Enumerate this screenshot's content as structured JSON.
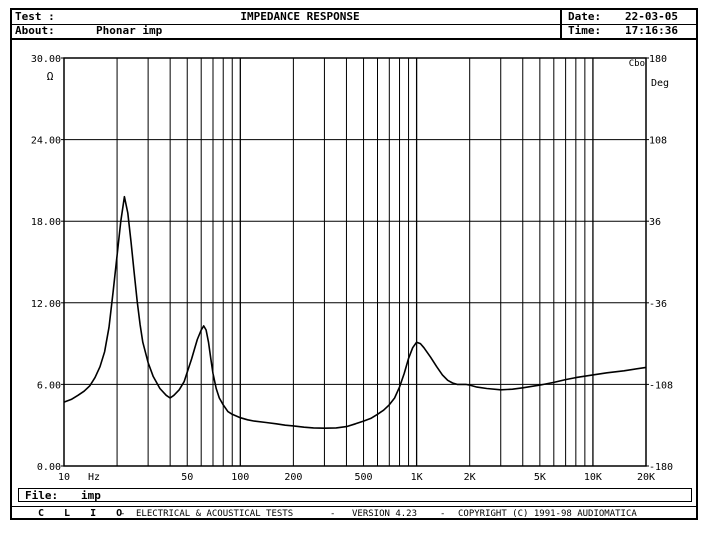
{
  "header": {
    "test_label": "Test :",
    "about_label": "About:",
    "about_value": "Phonar imp",
    "title": "IMPEDANCE RESPONSE",
    "date_label": "Date:",
    "date_value": "22-03-05",
    "time_label": "Time:",
    "time_value": "17:16:36"
  },
  "file": {
    "label": "File:",
    "value": "imp"
  },
  "footer": {
    "brand": "C L I O",
    "dash1": "-",
    "product": "ELECTRICAL & ACOUSTICAL TESTS",
    "dash2": "-",
    "version": "VERSION 4.23",
    "dash3": "-",
    "copyright": "COPYRIGHT (C) 1991-98 AUDIOMATICA"
  },
  "chart_data": {
    "type": "line",
    "title": "IMPEDANCE RESPONSE",
    "x_scale": "log",
    "xlim": [
      10,
      20000
    ],
    "ylim": [
      0,
      30
    ],
    "y2lim": [
      -180,
      180
    ],
    "ylabel_unit": "Ω",
    "y2label_unit": "Deg",
    "x_unit": "Hz",
    "corner_label": "Cbo",
    "grid": true,
    "x_tick_labels": [
      {
        "value": 10,
        "label": "10"
      },
      {
        "value": 50,
        "label": "50"
      },
      {
        "value": 100,
        "label": "100"
      },
      {
        "value": 200,
        "label": "200"
      },
      {
        "value": 500,
        "label": "500"
      },
      {
        "value": 1000,
        "label": "1K"
      },
      {
        "value": 2000,
        "label": "2K"
      },
      {
        "value": 5000,
        "label": "5K"
      },
      {
        "value": 10000,
        "label": "10K"
      },
      {
        "value": 20000,
        "label": "20K"
      }
    ],
    "y_tick_labels": [
      {
        "value": 0,
        "label": "0.00"
      },
      {
        "value": 6,
        "label": "6.00"
      },
      {
        "value": 12,
        "label": "12.00"
      },
      {
        "value": 18,
        "label": "18.00"
      },
      {
        "value": 24,
        "label": "24.00"
      },
      {
        "value": 30,
        "label": "30.00"
      }
    ],
    "y2_tick_labels": [
      {
        "value": -180,
        "label": "-180"
      },
      {
        "value": -108,
        "label": "-108"
      },
      {
        "value": -36,
        "label": "-36"
      },
      {
        "value": 36,
        "label": "36"
      },
      {
        "value": 108,
        "label": "108"
      },
      {
        "value": 180,
        "label": "180"
      }
    ],
    "series": [
      {
        "x": [
          10,
          11,
          12,
          13,
          14,
          15,
          16,
          17,
          18,
          19,
          20,
          21,
          22,
          23,
          24,
          25,
          26,
          27,
          28,
          30,
          32,
          35,
          38,
          40,
          42,
          45,
          48,
          50,
          53,
          55,
          57,
          60,
          62,
          64,
          66,
          68,
          70,
          73,
          76,
          80,
          85,
          90,
          100,
          110,
          120,
          140,
          160,
          180,
          200,
          230,
          260,
          300,
          350,
          400,
          450,
          500,
          550,
          600,
          650,
          700,
          750,
          800,
          850,
          900,
          950,
          1000,
          1050,
          1100,
          1200,
          1300,
          1400,
          1500,
          1600,
          1700,
          1800,
          1900,
          2000,
          2200,
          2500,
          3000,
          3500,
          4000,
          5000,
          6000,
          7000,
          8000,
          10000,
          12000,
          15000,
          20000
        ],
        "y": [
          4.7,
          4.9,
          5.2,
          5.5,
          5.9,
          6.5,
          7.3,
          8.4,
          10.2,
          12.8,
          15.5,
          18.0,
          19.8,
          18.6,
          16.5,
          14.2,
          12.1,
          10.4,
          9.1,
          7.6,
          6.6,
          5.7,
          5.2,
          5.0,
          5.2,
          5.6,
          6.2,
          6.9,
          7.9,
          8.6,
          9.3,
          10.0,
          10.3,
          10.0,
          9.1,
          7.9,
          6.8,
          5.7,
          5.0,
          4.5,
          4.0,
          3.8,
          3.55,
          3.4,
          3.3,
          3.2,
          3.1,
          3.0,
          2.95,
          2.85,
          2.8,
          2.78,
          2.8,
          2.9,
          3.1,
          3.3,
          3.5,
          3.8,
          4.1,
          4.5,
          5.0,
          5.8,
          6.8,
          7.9,
          8.7,
          9.1,
          9.0,
          8.7,
          8.0,
          7.3,
          6.7,
          6.3,
          6.1,
          6.0,
          6.0,
          6.0,
          5.95,
          5.8,
          5.7,
          5.6,
          5.65,
          5.75,
          5.95,
          6.15,
          6.35,
          6.5,
          6.7,
          6.85,
          7.0,
          7.25
        ]
      }
    ]
  }
}
